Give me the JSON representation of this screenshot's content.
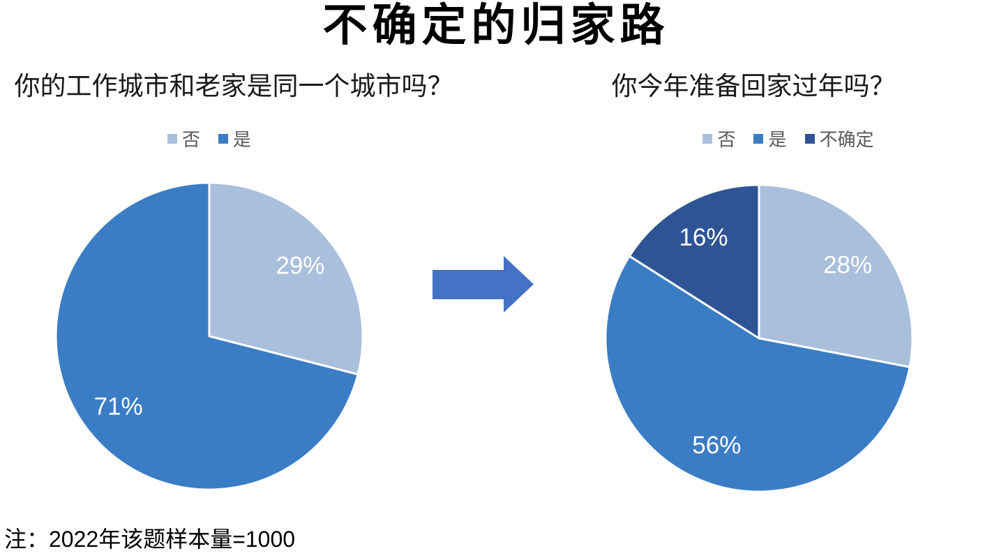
{
  "page": {
    "title": "不确定的归家路",
    "note": "注：2022年该题样本量=1000",
    "background_color": "#ffffff"
  },
  "arrow": {
    "name": "right-arrow",
    "direction": "right",
    "color": "#4472c4"
  },
  "chart_data": [
    {
      "type": "pie",
      "title": "你的工作城市和老家是同一个城市吗？",
      "categories": [
        "否",
        "是"
      ],
      "values": [
        29,
        71
      ],
      "value_labels": [
        "29%",
        "71%"
      ],
      "colors": [
        "#a9bfdc",
        "#3b7dc4"
      ],
      "label_text_color": "#ffffff",
      "legend_position": "top",
      "start_angle_deg": 0,
      "direction": "clockwise"
    },
    {
      "type": "pie",
      "title": "你今年准备回家过年吗？",
      "categories": [
        "否",
        "是",
        "不确定"
      ],
      "values": [
        28,
        56,
        16
      ],
      "value_labels": [
        "28%",
        "56%",
        "16%"
      ],
      "colors": [
        "#a9bfdc",
        "#3b7dc4",
        "#2f5496"
      ],
      "label_text_color": "#ffffff",
      "legend_position": "top",
      "start_angle_deg": 0,
      "direction": "clockwise"
    }
  ]
}
